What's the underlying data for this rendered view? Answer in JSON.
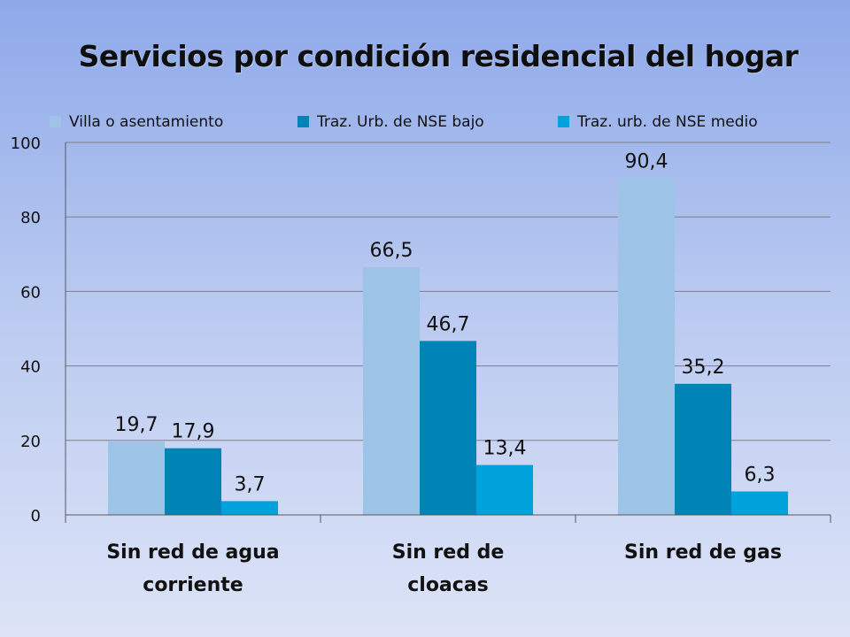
{
  "colors": {
    "series_1": "#9dc3e6",
    "series_2": "#0083b7",
    "series_3": "#00a2dc",
    "gridline": "#7f7f7f",
    "axis": "#595959",
    "text": "#111111"
  },
  "chart_data": {
    "type": "bar",
    "title": "Servicios por condición residencial del hogar",
    "xlabel": "",
    "ylabel": "",
    "categories": [
      "Sin red de agua corriente",
      "Sin red de cloacas",
      "Sin red de gas"
    ],
    "category_label_lines": [
      [
        "Sin red de agua",
        "corriente"
      ],
      [
        "Sin red de",
        "cloacas"
      ],
      [
        "Sin red de gas"
      ]
    ],
    "series": [
      {
        "name": "Villa o asentamiento",
        "values": [
          19.7,
          66.5,
          90.4
        ],
        "labels": [
          "19,7",
          "66,5",
          "90,4"
        ],
        "color": "#9dc3e6"
      },
      {
        "name": "Traz. Urb. de NSE bajo",
        "values": [
          17.9,
          46.7,
          35.2
        ],
        "labels": [
          "17,9",
          "46,7",
          "35,2"
        ],
        "color": "#0083b7"
      },
      {
        "name": "Traz. urb. de NSE medio",
        "values": [
          3.7,
          13.4,
          6.3
        ],
        "labels": [
          "3,7",
          "13,4",
          "6,3"
        ],
        "color": "#00a2dc"
      }
    ],
    "ylim": [
      0,
      100
    ],
    "yticks": [
      0,
      20,
      40,
      60,
      80,
      100
    ],
    "grid": true,
    "legend_position": "top"
  }
}
